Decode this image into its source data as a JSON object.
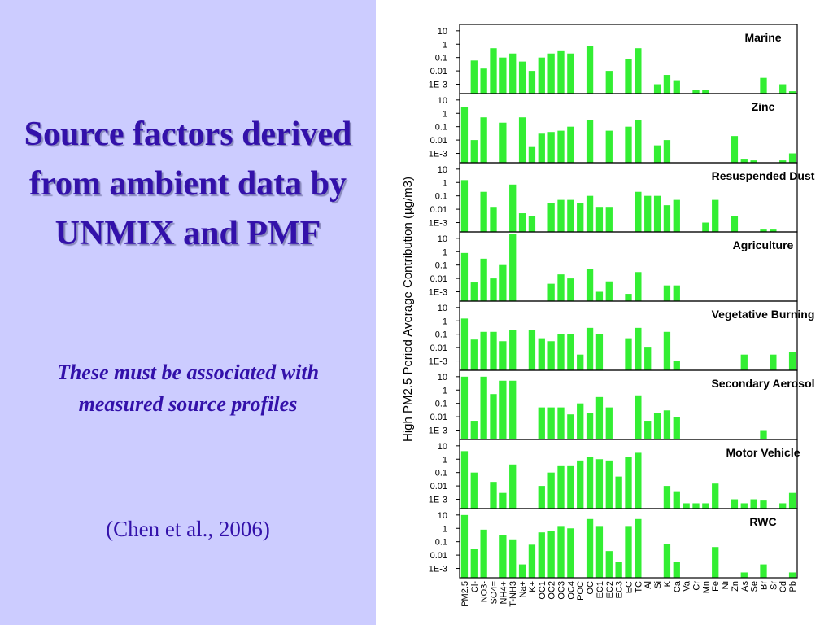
{
  "slide": {
    "title": "Source factors derived from ambient data by UNMIX and PMF",
    "subtitle": "These must be associated with measured source profiles",
    "citation": "(Chen et al., 2006)"
  },
  "chart_data": {
    "type": "bar",
    "ylabel": "High PM2.5 Period Average Contribution (µg/m3)",
    "log_scale": true,
    "color": "#33ee33",
    "ylim": [
      0.0002,
      30
    ],
    "yticks": [
      {
        "value": 0.001,
        "label": "1E-3"
      },
      0.01,
      0.1,
      1,
      10
    ],
    "categories": [
      "PM2.5",
      "Cl-",
      "NO3-",
      "SO4=",
      "NH4+",
      "T-NH3",
      "Na+",
      "K+",
      "OC1",
      "OC2",
      "OC3",
      "OC4",
      "POC",
      "OC",
      "EC1",
      "EC2",
      "EC3",
      "EC",
      "TC",
      "Al",
      "Si",
      "K",
      "Ca",
      "Va",
      "Cr",
      "Mn",
      "Fe",
      "Ni",
      "Zn",
      "As",
      "Se",
      "Br",
      "Sr",
      "Cd",
      "Pb"
    ],
    "panels": [
      {
        "title": "Marine",
        "values": [
          null,
          0.06,
          0.015,
          0.5,
          0.1,
          0.2,
          0.05,
          0.01,
          0.1,
          0.2,
          0.3,
          0.2,
          null,
          0.7,
          null,
          0.01,
          null,
          0.08,
          0.5,
          null,
          0.001,
          0.005,
          0.002,
          null,
          0.0004,
          0.0004,
          null,
          null,
          null,
          null,
          null,
          0.003,
          null,
          0.001,
          0.0003
        ]
      },
      {
        "title": "Zinc",
        "values": [
          3,
          0.01,
          0.5,
          null,
          0.2,
          null,
          0.5,
          0.003,
          0.03,
          0.04,
          0.05,
          0.1,
          null,
          0.3,
          null,
          0.05,
          null,
          0.1,
          0.3,
          null,
          0.004,
          0.01,
          null,
          null,
          null,
          null,
          null,
          null,
          0.02,
          0.0004,
          0.0003,
          null,
          null,
          0.0003,
          0.001
        ]
      },
      {
        "title": "Resuspended Dust",
        "values": [
          1.5,
          null,
          0.2,
          0.015,
          null,
          0.7,
          0.005,
          0.003,
          null,
          0.03,
          0.05,
          0.05,
          0.03,
          0.1,
          0.015,
          0.015,
          null,
          null,
          0.2,
          0.1,
          0.1,
          0.02,
          0.05,
          null,
          null,
          0.001,
          0.05,
          null,
          0.003,
          null,
          null,
          0.0003,
          0.0003,
          null,
          null
        ]
      },
      {
        "title": "Agriculture",
        "values": [
          0.8,
          0.005,
          0.3,
          0.01,
          0.1,
          20,
          null,
          null,
          null,
          0.004,
          0.02,
          0.01,
          null,
          0.05,
          0.001,
          0.006,
          null,
          0.0007,
          0.03,
          null,
          null,
          0.003,
          0.003,
          null,
          null,
          null,
          null,
          null,
          null,
          null,
          null,
          null,
          null,
          null,
          null
        ]
      },
      {
        "title": "Vegetative Burning",
        "values": [
          1.5,
          0.04,
          0.15,
          0.15,
          0.03,
          0.2,
          null,
          0.2,
          0.05,
          0.03,
          0.1,
          0.1,
          0.003,
          0.3,
          0.1,
          null,
          null,
          0.05,
          0.3,
          0.01,
          null,
          0.15,
          0.001,
          null,
          null,
          null,
          null,
          null,
          null,
          0.003,
          null,
          null,
          0.003,
          null,
          0.005
        ]
      },
      {
        "title": "Secondary Aerosol",
        "values": [
          10,
          0.005,
          10,
          0.5,
          5,
          5,
          null,
          null,
          0.05,
          0.05,
          0.05,
          0.015,
          0.1,
          0.02,
          0.3,
          0.05,
          null,
          null,
          0.4,
          0.005,
          0.02,
          0.03,
          0.01,
          null,
          null,
          null,
          null,
          null,
          null,
          null,
          null,
          0.001,
          null,
          null,
          null
        ]
      },
      {
        "title": "Motor Vehicle",
        "values": [
          4,
          0.1,
          null,
          0.02,
          0.003,
          0.4,
          null,
          null,
          0.01,
          0.1,
          0.3,
          0.3,
          0.8,
          1.5,
          1,
          0.8,
          0.05,
          1.5,
          3,
          null,
          null,
          0.01,
          0.004,
          0.0005,
          0.0005,
          0.0005,
          0.015,
          null,
          0.001,
          0.0005,
          0.001,
          0.0008,
          null,
          0.0005,
          0.003
        ]
      },
      {
        "title": "RWC",
        "values": [
          10,
          0.03,
          0.8,
          null,
          0.3,
          0.15,
          0.002,
          0.06,
          0.5,
          0.6,
          1.5,
          1,
          null,
          5,
          1.5,
          0.02,
          0.003,
          1.5,
          5,
          null,
          null,
          0.07,
          0.003,
          null,
          null,
          null,
          0.04,
          null,
          null,
          0.0005,
          null,
          0.002,
          null,
          null,
          0.0005
        ]
      }
    ]
  }
}
